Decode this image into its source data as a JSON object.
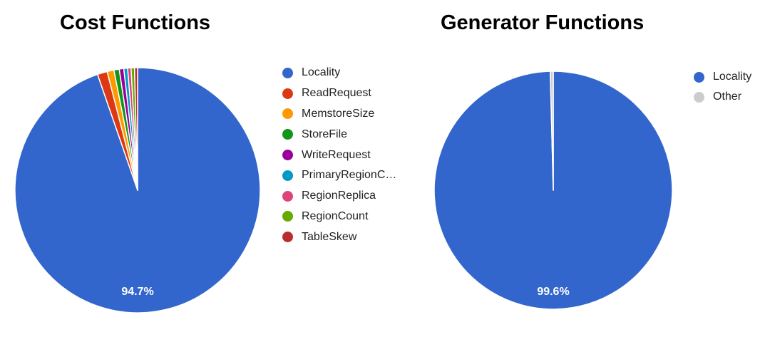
{
  "chart_data": [
    {
      "type": "pie",
      "title": "Cost Functions",
      "series": [
        {
          "name": "Locality",
          "value": 94.7,
          "color": "#3366cc"
        },
        {
          "name": "ReadRequest",
          "value": 1.3,
          "color": "#dc3912"
        },
        {
          "name": "MemstoreSize",
          "value": 0.9,
          "color": "#ff9900"
        },
        {
          "name": "StoreFile",
          "value": 0.7,
          "color": "#109618"
        },
        {
          "name": "WriteRequest",
          "value": 0.6,
          "color": "#990099"
        },
        {
          "name": "PrimaryRegionC…",
          "value": 0.5,
          "color": "#0099c6"
        },
        {
          "name": "RegionReplica",
          "value": 0.45,
          "color": "#dd4477"
        },
        {
          "name": "RegionCount",
          "value": 0.45,
          "color": "#66aa00"
        },
        {
          "name": "TableSkew",
          "value": 0.4,
          "color": "#b82e2e"
        }
      ],
      "data_labels": [
        "94.7%"
      ],
      "legend_position": "right"
    },
    {
      "type": "pie",
      "title": "Generator Functions",
      "series": [
        {
          "name": "Locality",
          "value": 99.6,
          "color": "#3366cc"
        },
        {
          "name": "Other",
          "value": 0.4,
          "color": "#cccccc"
        }
      ],
      "data_labels": [
        "99.6%"
      ],
      "legend_position": "right"
    }
  ]
}
